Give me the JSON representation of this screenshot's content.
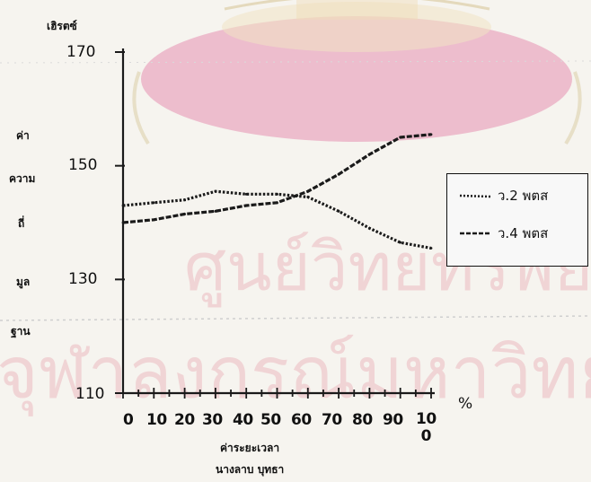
{
  "watermark": {
    "line1": "ศูนย์วิทยทรัพยากร",
    "line2": "จุฬาลงกรณ์มหาวิทยาลัย"
  },
  "colors": {
    "background": "#f6f4ef",
    "emblem": "#e9b2c6",
    "ink": "#1a1a1a",
    "watermark": "#e7a0aa"
  },
  "chart_data": {
    "type": "line",
    "unit_label": "เฮิรตซ์",
    "ylabel_lines": [
      "ค่า",
      "ความ",
      "ถี่",
      "มูล",
      "ฐาน"
    ],
    "xlabel_lines": [
      "ค่าระยะเวลา",
      "นางลาบ บุทธา"
    ],
    "x_suffix": "%",
    "ylim": [
      110,
      170
    ],
    "yticks": [
      110,
      130,
      150,
      170
    ],
    "x": [
      0,
      10,
      20,
      30,
      40,
      50,
      60,
      70,
      80,
      90,
      100
    ],
    "x_tick_labels": [
      "0",
      "10",
      "20",
      "30",
      "40",
      "50",
      "60",
      "70",
      "80",
      "90",
      "10\n0"
    ],
    "grid": false,
    "legend_position": "right",
    "series": [
      {
        "name": "ว.2 พตส",
        "values": [
          143,
          143.5,
          144,
          145.5,
          145,
          145,
          144.5,
          142,
          139,
          136.5,
          135.5
        ]
      },
      {
        "name": "ว.4 พตส",
        "values": [
          140,
          140.5,
          141.5,
          142,
          143,
          143.5,
          145.5,
          148.5,
          152,
          155,
          155.5
        ]
      }
    ]
  }
}
